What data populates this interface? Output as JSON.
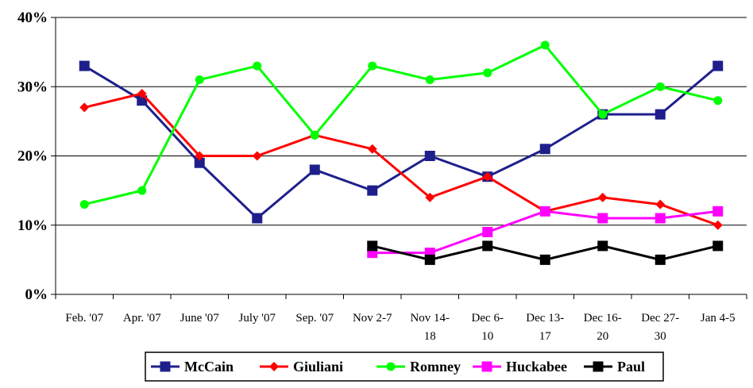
{
  "chart_data": {
    "type": "line",
    "title": "",
    "xlabel": "",
    "ylabel": "",
    "ylim": [
      0,
      40
    ],
    "yticks": [
      "0%",
      "10%",
      "20%",
      "30%",
      "40%"
    ],
    "grid": "horizontal",
    "legend_position": "bottom",
    "categories": [
      [
        "Feb. '07"
      ],
      [
        "Apr. '07"
      ],
      [
        "June '07"
      ],
      [
        "July '07"
      ],
      [
        "Sep. '07"
      ],
      [
        "Nov 2-7"
      ],
      [
        "Nov 14-",
        "18"
      ],
      [
        "Dec 6-",
        "10"
      ],
      [
        "Dec 13-",
        "17"
      ],
      [
        "Dec 16-",
        "20"
      ],
      [
        "Dec 27-",
        "30"
      ],
      [
        "Jan 4-5"
      ]
    ],
    "series": [
      {
        "name": "McCain",
        "color": "#1f1f8c",
        "marker": "square",
        "values": [
          33,
          28,
          19,
          11,
          18,
          15,
          20,
          17,
          21,
          26,
          26,
          33
        ]
      },
      {
        "name": "Giuliani",
        "color": "#ff0000",
        "marker": "diamond",
        "values": [
          27,
          29,
          20,
          20,
          23,
          21,
          14,
          17,
          12,
          14,
          13,
          10
        ]
      },
      {
        "name": "Romney",
        "color": "#00ff00",
        "marker": "circle",
        "values": [
          13,
          15,
          31,
          33,
          23,
          33,
          31,
          32,
          36,
          26,
          30,
          28
        ]
      },
      {
        "name": "Huckabee",
        "color": "#ff00ff",
        "marker": "square",
        "values": [
          null,
          null,
          null,
          null,
          null,
          6,
          6,
          9,
          12,
          11,
          11,
          12
        ]
      },
      {
        "name": "Paul",
        "color": "#000000",
        "marker": "square",
        "values": [
          null,
          null,
          null,
          null,
          null,
          7,
          5,
          7,
          5,
          7,
          5,
          7
        ]
      }
    ]
  }
}
